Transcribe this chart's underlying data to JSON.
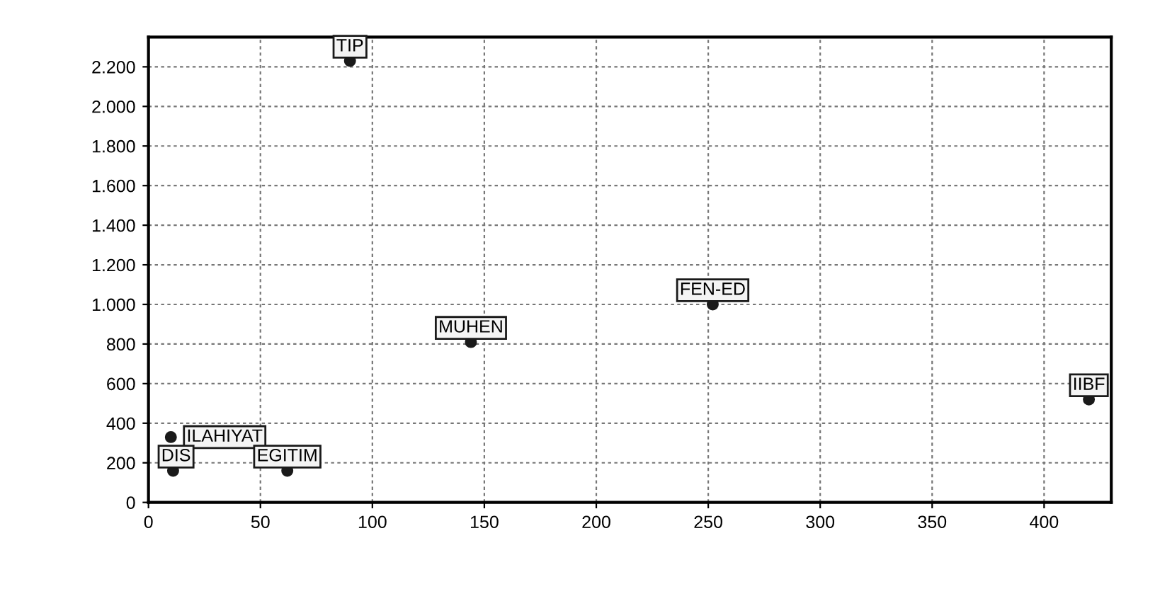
{
  "chart_data": {
    "type": "scatter",
    "marker": "circle",
    "grid": true,
    "legend": false,
    "xlim": [
      0,
      430
    ],
    "ylim": [
      0,
      2350
    ],
    "xticks": [
      0,
      50,
      100,
      150,
      200,
      250,
      300,
      350,
      400
    ],
    "yticks": [
      0,
      200,
      400,
      600,
      800,
      {
        "value": 1000,
        "label": "1.000"
      },
      {
        "value": 1200,
        "label": "1.200"
      },
      {
        "value": 1400,
        "label": "1.400"
      },
      {
        "value": 1600,
        "label": "1.600"
      },
      {
        "value": 1800,
        "label": "1.800"
      },
      {
        "value": 2000,
        "label": "2.000"
      },
      {
        "value": 2200,
        "label": "2.200"
      }
    ],
    "series": [
      {
        "name": "ILAHIYAT",
        "color": "#1a1a1a",
        "x": [
          10
        ],
        "values": [
          330
        ]
      },
      {
        "name": "DIS",
        "color": "#1a1a1a",
        "x": [
          11
        ],
        "values": [
          160
        ]
      },
      {
        "name": "EGITIM",
        "color": "#1a1a1a",
        "x": [
          62
        ],
        "values": [
          160
        ]
      },
      {
        "name": "TIP",
        "color": "#1a1a1a",
        "x": [
          90
        ],
        "values": [
          2230
        ]
      },
      {
        "name": "MUHEN",
        "color": "#1a1a1a",
        "x": [
          144
        ],
        "values": [
          810
        ]
      },
      {
        "name": "FEN-ED",
        "color": "#1a1a1a",
        "x": [
          252
        ],
        "values": [
          1000
        ]
      },
      {
        "name": "IIBF",
        "color": "#1a1a1a",
        "x": [
          420
        ],
        "values": [
          520
        ]
      }
    ]
  }
}
